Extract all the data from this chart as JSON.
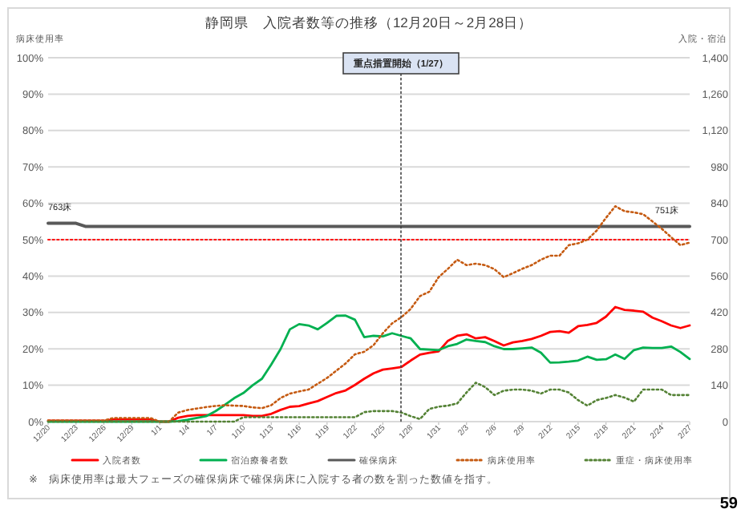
{
  "chart_data": {
    "type": "line",
    "title": "静岡県　入院者数等の推移（12月20日～2月28日）",
    "ylabel": "病床使用率",
    "y2label": "入院・宿泊",
    "categories": [
      "12/20",
      null,
      null,
      "12/23",
      null,
      null,
      "12/26",
      null,
      null,
      "12/29",
      null,
      null,
      "1/1",
      null,
      null,
      "1/4",
      null,
      null,
      "1/7",
      null,
      null,
      "1/10",
      null,
      null,
      "1/13",
      null,
      null,
      "1/16",
      null,
      null,
      "1/19",
      null,
      null,
      "1/22",
      null,
      null,
      "1/25",
      null,
      null,
      "1/28",
      null,
      null,
      "1/31",
      null,
      null,
      "2/3",
      null,
      null,
      "2/6",
      null,
      null,
      "2/9",
      null,
      null,
      "2/12",
      null,
      null,
      "2/15",
      null,
      null,
      "2/18",
      null,
      null,
      "2/21",
      null,
      null,
      "2/24",
      null,
      null,
      "2/27"
    ],
    "ylim": [
      0,
      100
    ],
    "yticks": [
      {
        "value": 0,
        "label": "0%"
      },
      {
        "value": 10,
        "label": "10%"
      },
      {
        "value": 20,
        "label": "20%"
      },
      {
        "value": 30,
        "label": "30%"
      },
      {
        "value": 40,
        "label": "40%"
      },
      {
        "value": 50,
        "label": "50%"
      },
      {
        "value": 60,
        "label": "60%"
      },
      {
        "value": 70,
        "label": "70%"
      },
      {
        "value": 80,
        "label": "80%"
      },
      {
        "value": 90,
        "label": "90%"
      },
      {
        "value": 100,
        "label": "100%"
      }
    ],
    "y2lim": [
      0,
      1400
    ],
    "y2ticks": [
      {
        "value": 0,
        "label": "0"
      },
      {
        "value": 140,
        "label": "140"
      },
      {
        "value": 280,
        "label": "280"
      },
      {
        "value": 420,
        "label": "420"
      },
      {
        "value": 560,
        "label": "560"
      },
      {
        "value": 700,
        "label": "700"
      },
      {
        "value": 840,
        "label": "840"
      },
      {
        "value": 980,
        "label": "980"
      },
      {
        "value": 1120,
        "label": "1,120"
      },
      {
        "value": 1260,
        "label": "1,260"
      },
      {
        "value": 1400,
        "label": "1,400"
      }
    ],
    "grid": "y",
    "legend": "bottom",
    "marker": "none",
    "series": [
      {
        "name": "入院者数",
        "color": "#ff0000",
        "axis": "y2",
        "line_style": "solid",
        "values": [
          3,
          3,
          3,
          3,
          3,
          3,
          3,
          8,
          8,
          8,
          8,
          8,
          0,
          0,
          15,
          22,
          25,
          25,
          25,
          25,
          25,
          25,
          22,
          22,
          30,
          45,
          57,
          60,
          70,
          79,
          95,
          110,
          120,
          141,
          165,
          186,
          200,
          205,
          210,
          235,
          258,
          265,
          270,
          311,
          330,
          336,
          320,
          325,
          310,
          293,
          305,
          310,
          318,
          330,
          345,
          348,
          342,
          367,
          372,
          380,
          404,
          441,
          430,
          427,
          423,
          400,
          386,
          370,
          360,
          370
        ]
      },
      {
        "name": "宿泊療養者数",
        "color": "#00b050",
        "axis": "y2",
        "line_style": "solid",
        "values": [
          0,
          0,
          0,
          0,
          0,
          0,
          0,
          0,
          0,
          0,
          0,
          0,
          0,
          0,
          2,
          7,
          14,
          21,
          40,
          64,
          90,
          110,
          140,
          165,
          220,
          279,
          355,
          375,
          370,
          355,
          380,
          407,
          408,
          392,
          325,
          330,
          328,
          340,
          330,
          320,
          279,
          277,
          275,
          290,
          299,
          316,
          310,
          306,
          290,
          279,
          279,
          282,
          285,
          265,
          227,
          228,
          231,
          235,
          250,
          238,
          240,
          258,
          241,
          275,
          285,
          283,
          283,
          289,
          268,
          241
        ]
      },
      {
        "name": "確保病床",
        "color": "#595959",
        "axis": "y2",
        "line_style": "solid",
        "values": [
          763,
          763,
          763,
          763,
          751,
          751,
          751,
          751,
          751,
          751,
          751,
          751,
          751,
          751,
          751,
          751,
          751,
          751,
          751,
          751,
          751,
          751,
          751,
          751,
          751,
          751,
          751,
          751,
          751,
          751,
          751,
          751,
          751,
          751,
          751,
          751,
          751,
          751,
          751,
          751,
          751,
          751,
          751,
          751,
          751,
          751,
          751,
          751,
          751,
          751,
          751,
          751,
          751,
          751,
          751,
          751,
          751,
          751,
          751,
          751,
          751,
          751,
          751,
          751,
          751,
          751,
          751,
          751,
          751,
          751
        ]
      },
      {
        "name": "病床使用率",
        "color": "#c55a11",
        "line_style": "dotted",
        "values": [
          0.3,
          0.3,
          0.3,
          0.3,
          0.3,
          0.3,
          0.3,
          1,
          1,
          1,
          1,
          1,
          0,
          0,
          2.5,
          3.2,
          3.6,
          4,
          4.3,
          4.5,
          4.4,
          4.3,
          3.9,
          3.7,
          4.5,
          6.5,
          7.7,
          8.3,
          8.8,
          10.4,
          12,
          14,
          16,
          18.5,
          19.2,
          21,
          24.3,
          27,
          28.7,
          31,
          34.5,
          35.7,
          39.7,
          42,
          44.5,
          43,
          43.4,
          43,
          41.9,
          39.7,
          40.8,
          42,
          43,
          44.5,
          45.6,
          45.6,
          48.5,
          49,
          50,
          52.5,
          56,
          59.2,
          57.8,
          57.5,
          57,
          55,
          53,
          50.7,
          48.5,
          49.2
        ]
      },
      {
        "name": "重症・病床使用率",
        "color": "#548235",
        "line_style": "dotted",
        "values": [
          0,
          0,
          0,
          0,
          0,
          0,
          0,
          0,
          0,
          0,
          0,
          0,
          0,
          0,
          0,
          0,
          0,
          0,
          0,
          0,
          0,
          1.2,
          1.2,
          1.2,
          1.2,
          1.2,
          1.2,
          1.2,
          1.2,
          1.2,
          1.2,
          1.2,
          1.2,
          1.2,
          2.6,
          2.9,
          2.9,
          2.9,
          2.5,
          1.5,
          0.7,
          3.5,
          4.1,
          4.4,
          5,
          8,
          10.7,
          9.5,
          7.3,
          8.5,
          8.8,
          8.8,
          8.5,
          7.7,
          8.8,
          8.8,
          8,
          5.9,
          4.4,
          5.9,
          6.5,
          7.3,
          6.6,
          5.5,
          8.8,
          8.8,
          8.8,
          7.3,
          7.3,
          7.3
        ]
      }
    ],
    "ref_lines": [
      {
        "axis": "y",
        "value": 50,
        "color": "#ff0000",
        "line_style": "dotted"
      }
    ],
    "annotations": [
      "763床",
      "751床",
      "重点措置開始（1/27）",
      "※　病床使用率は最大フェーズの確保病床で確保病床に入院する者の数を割った数値を指す。",
      "59"
    ]
  }
}
